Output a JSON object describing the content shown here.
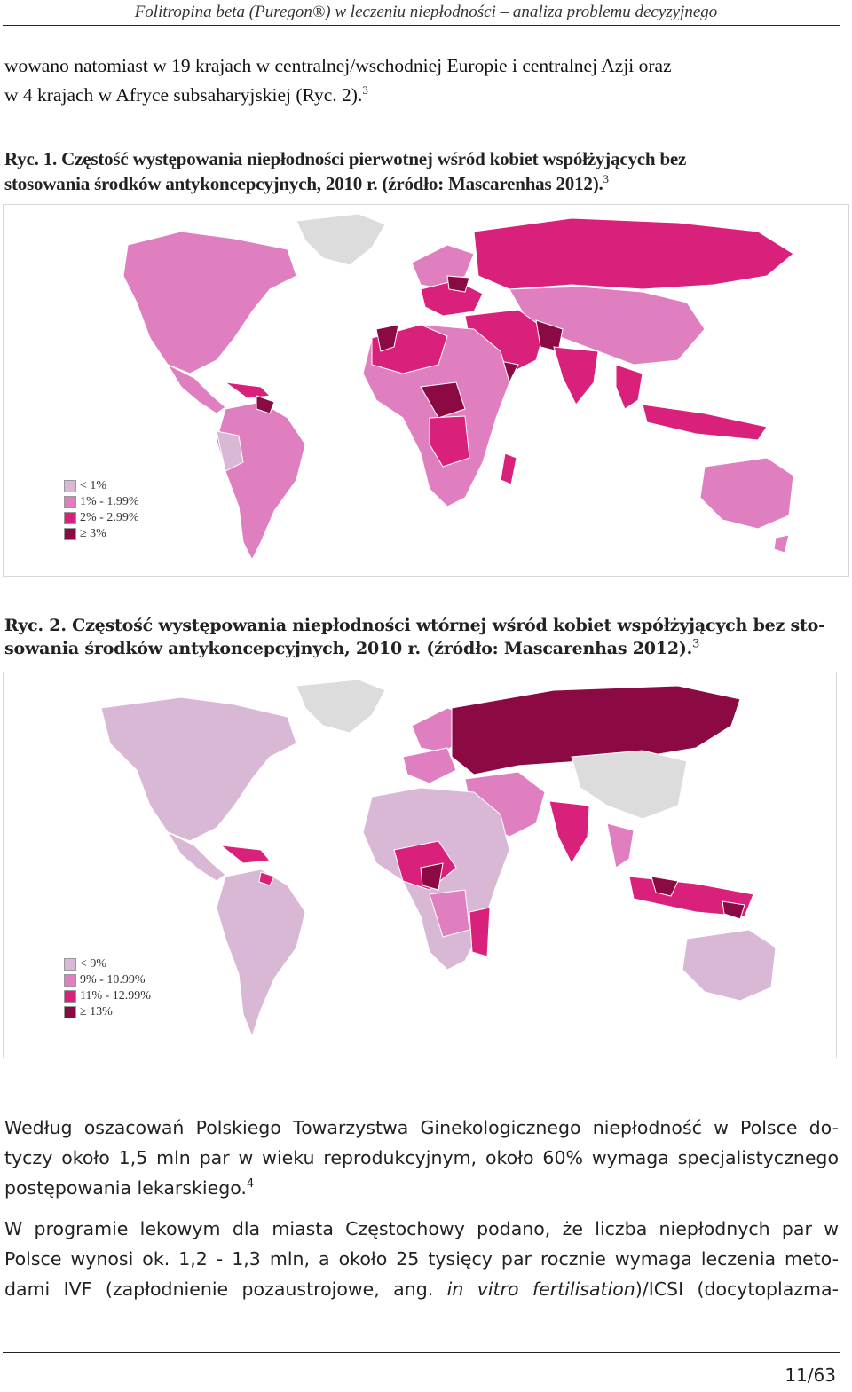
{
  "header": {
    "running_title": "Folitropina beta (Puregon®) w leczeniu niepłodności – analiza problemu decyzyjnego"
  },
  "intro": {
    "line1": "wowano natomiast w 19 krajach w centralnej/wschodniej Europie i centralnej Azji oraz",
    "line2": "w 4 krajach w Afryce subsaharyjskiej (Ryc. 2).",
    "ref": "3"
  },
  "figure1": {
    "caption_line1": "Ryc. 1. Częstość występowania niepłodności pierwotnej wśród kobiet współżyjących bez",
    "caption_line2": "stosowania środków antykoncepcyjnych, 2010 r. (źródło: Mascarenhas 2012).",
    "ref": "3",
    "legend": [
      {
        "label": "< 1%",
        "color": "#d9b8d6"
      },
      {
        "label": "1% - 1.99%",
        "color": "#e07fc0"
      },
      {
        "label": "2% - 2.99%",
        "color": "#d9207a"
      },
      {
        "label": "≥ 3%",
        "color": "#8b0a44"
      }
    ]
  },
  "figure2": {
    "caption_line1": "Ryc. 2. Częstość występowania niepłodności wtórnej wśród kobiet współżyjących bez sto-",
    "caption_line2": "sowania środków antykoncepcyjnych, 2010 r. (źródło: Mascarenhas 2012).",
    "ref": "3",
    "legend": [
      {
        "label": "< 9%",
        "color": "#d9b8d6"
      },
      {
        "label": "9% - 10.99%",
        "color": "#e07fc0"
      },
      {
        "label": "11% - 12.99%",
        "color": "#d9207a"
      },
      {
        "label": "≥ 13%",
        "color": "#8b0a44"
      }
    ]
  },
  "body": {
    "p1_line1": "Według oszacowań Polskiego Towarzystwa Ginekologicznego niepłodność w Polsce do-",
    "p1_line2": "tyczy około 1,5 mln par w wieku reprodukcyjnym, około 60% wymaga specjalistycznego",
    "p1_line3": "postępowania lekarskiego.",
    "p1_ref": "4",
    "p2_line1": "W programie lekowym dla miasta Częstochowy podano, że liczba niepłodnych par w",
    "p2_line2": "Polsce wynosi ok. 1,2 - 1,3 mln, a około 25 tysięcy par rocznie wymaga leczenia meto-",
    "p2_line3_a": "dami IVF (zapłodnienie pozaustrojowe, ang. ",
    "p2_line3_b": "in vitro fertilisation",
    "p2_line3_c": ")/ICSI (docytoplazma-"
  },
  "footer": {
    "page": "11/63"
  }
}
